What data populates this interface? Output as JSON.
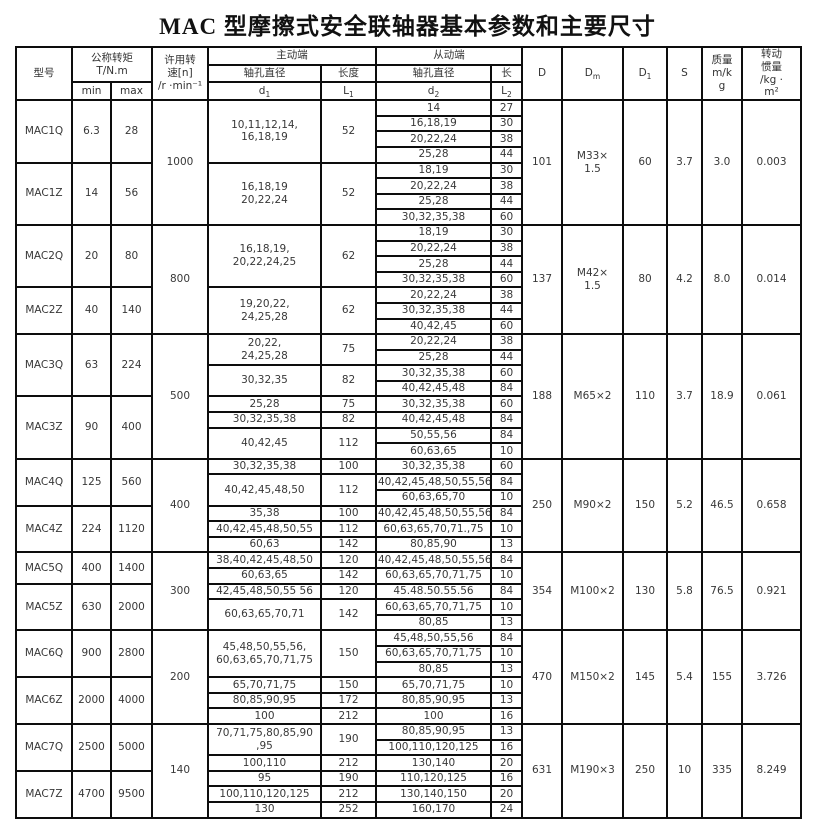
{
  "title": "MAC 型摩擦式安全联轴器基本参数和主要尺寸",
  "header": {
    "model": "型号",
    "torque_l1": "公称转矩",
    "torque_l2": "T/N.m",
    "min": "min",
    "max": "max",
    "speed_lines": [
      "许用转",
      "速[n]",
      "/r ·min⁻¹"
    ],
    "driver": "主动端",
    "driven": "从动端",
    "bore": "轴孔直径",
    "length": "长度",
    "length_short": "长",
    "d_base": "d",
    "L_base": "L",
    "sub1": "1",
    "sub2": "2",
    "D": "D",
    "Dm_base": "D",
    "Dm_sub": "m",
    "D1_base": "D",
    "D1_sub": "1",
    "S": "S",
    "mass_lines": [
      "质量",
      "m/k",
      "g"
    ],
    "inertia_lines": [
      "转动",
      "惯量",
      "/kg ·",
      "m²"
    ]
  },
  "groups": [
    {
      "speed": "1000",
      "D": "101",
      "Dm": [
        "M33×",
        "1.5"
      ],
      "D1": "60",
      "S": "3.7",
      "mass": "3.0",
      "inertia": "0.003",
      "models": [
        {
          "name": "MAC1Q",
          "min": "6.3",
          "max": "28",
          "blocks": [
            {
              "d1": [
                "10,11,12,14,",
                "16,18,19"
              ],
              "L1": "52",
              "rows": [
                [
                  "14",
                  "27"
                ],
                [
                  "16,18,19",
                  "30"
                ],
                [
                  "20,22,24",
                  "38"
                ],
                [
                  "25,28",
                  "44"
                ]
              ]
            }
          ]
        },
        {
          "name": "MAC1Z",
          "min": "14",
          "max": "56",
          "blocks": [
            {
              "d1": [
                "16,18,19",
                "20,22,24"
              ],
              "L1": "52",
              "rows": [
                [
                  "18,19",
                  "30"
                ],
                [
                  "20,22,24",
                  "38"
                ],
                [
                  "25,28",
                  "44"
                ],
                [
                  "30,32,35,38",
                  "60"
                ]
              ]
            }
          ]
        }
      ]
    },
    {
      "speed": "800",
      "D": "137",
      "Dm": [
        "M42×",
        "1.5"
      ],
      "D1": "80",
      "S": "4.2",
      "mass": "8.0",
      "inertia": "0.014",
      "models": [
        {
          "name": "MAC2Q",
          "min": "20",
          "max": "80",
          "blocks": [
            {
              "d1": [
                "16,18,19,",
                "20,22,24,25"
              ],
              "L1": "62",
              "rows": [
                [
                  "18,19",
                  "30"
                ],
                [
                  "20,22,24",
                  "38"
                ],
                [
                  "25,28",
                  "44"
                ],
                [
                  "30,32,35,38",
                  "60"
                ]
              ]
            }
          ]
        },
        {
          "name": "MAC2Z",
          "min": "40",
          "max": "140",
          "blocks": [
            {
              "d1": [
                "19,20,22,",
                "24,25,28"
              ],
              "L1": "62",
              "rows": [
                [
                  "20,22,24",
                  "38"
                ],
                [
                  "30,32,35,38",
                  "44"
                ],
                [
                  "40,42,45",
                  "60"
                ]
              ]
            }
          ]
        }
      ]
    },
    {
      "speed": "500",
      "D": "188",
      "Dm": "M65×2",
      "D1": "110",
      "S": "3.7",
      "mass": "18.9",
      "inertia": "0.061",
      "models": [
        {
          "name": "MAC3Q",
          "min": "63",
          "max": "224",
          "blocks": [
            {
              "d1": [
                "20,22,",
                "24,25,28"
              ],
              "L1": "75",
              "rows": [
                [
                  "20,22,24",
                  "38"
                ],
                [
                  "25,28",
                  "44"
                ]
              ]
            },
            {
              "d1": "30,32,35",
              "L1": "82",
              "rows": [
                [
                  "30,32,35,38",
                  "60"
                ],
                [
                  "40,42,45,48",
                  "84"
                ]
              ]
            }
          ]
        },
        {
          "name": "MAC3Z",
          "min": "90",
          "max": "400",
          "blocks": [
            {
              "d1": "25,28",
              "L1": "75",
              "rows": [
                [
                  "30,32,35,38",
                  "60"
                ]
              ]
            },
            {
              "d1": "30,32,35,38",
              "L1": "82",
              "rows": [
                [
                  "40,42,45,48",
                  "84"
                ]
              ]
            },
            {
              "d1": "40,42,45",
              "L1": "112",
              "rows": [
                [
                  "50,55,56",
                  "84"
                ],
                [
                  "60,63,65",
                  "10"
                ]
              ]
            }
          ]
        }
      ]
    },
    {
      "speed": "400",
      "D": "250",
      "Dm": "M90×2",
      "D1": "150",
      "S": "5.2",
      "mass": "46.5",
      "inertia": "0.658",
      "models": [
        {
          "name": "MAC4Q",
          "min": "125",
          "max": "560",
          "blocks": [
            {
              "d1": "30,32,35,38",
              "L1": "100",
              "rows": [
                [
                  "30,32,35,38",
                  "60"
                ]
              ]
            },
            {
              "d1": "40,42,45,48,50",
              "L1": "112",
              "rows": [
                [
                  "40,42,45,48,50,55,56",
                  "84"
                ],
                [
                  "60,63,65,70",
                  "10"
                ]
              ]
            }
          ]
        },
        {
          "name": "MAC4Z",
          "min": "224",
          "max": "1120",
          "blocks": [
            {
              "d1": "35,38",
              "L1": "100",
              "rows": [
                [
                  "40,42,45,48,50,55,56",
                  "84"
                ]
              ]
            },
            {
              "d1": "40,42,45,48,50,55",
              "L1": "112",
              "rows": [
                [
                  "60,63,65,70,71.,75",
                  "10"
                ]
              ]
            },
            {
              "d1": "60,63",
              "L1": "142",
              "rows": [
                [
                  "80,85,90",
                  "13"
                ]
              ]
            }
          ]
        }
      ]
    },
    {
      "speed": "300",
      "D": "354",
      "Dm": "M100×2",
      "D1": "130",
      "S": "5.8",
      "mass": "76.5",
      "inertia": "0.921",
      "models": [
        {
          "name": "MAC5Q",
          "min": "400",
          "max": "1400",
          "blocks": [
            {
              "d1": "38,40,42,45,48,50",
              "L1": "120",
              "rows": [
                [
                  "40,42,45,48,50,55,56",
                  "84"
                ]
              ]
            },
            {
              "d1": "60,63,65",
              "L1": "142",
              "rows": [
                [
                  "60,63,65,70,71,75",
                  "10"
                ]
              ]
            }
          ]
        },
        {
          "name": "MAC5Z",
          "min": "630",
          "max": "2000",
          "blocks": [
            {
              "d1": "42,45,48,50,55 56",
              "L1": "120",
              "rows": [
                [
                  "45.48.50.55.56",
                  "84"
                ]
              ]
            },
            {
              "d1": "60,63,65,70,71",
              "L1": "142",
              "rows": [
                [
                  "60,63,65,70,71,75",
                  "10"
                ],
                [
                  "80,85",
                  "13"
                ]
              ]
            }
          ]
        }
      ]
    },
    {
      "speed": "200",
      "D": "470",
      "Dm": "M150×2",
      "D1": "145",
      "S": "5.4",
      "mass": "155",
      "inertia": "3.726",
      "models": [
        {
          "name": "MAC6Q",
          "min": "900",
          "max": "2800",
          "blocks": [
            {
              "d1": [
                "45,48,50,55,56,",
                "60,63,65,70,71,75"
              ],
              "L1": "150",
              "rows": [
                [
                  "45,48,50,55,56",
                  "84"
                ],
                [
                  "60,63,65,70,71,75",
                  "10"
                ],
                [
                  "80,85",
                  "13"
                ]
              ]
            }
          ]
        },
        {
          "name": "MAC6Z",
          "min": "2000",
          "max": "4000",
          "blocks": [
            {
              "d1": "65,70,71,75",
              "L1": "150",
              "rows": [
                [
                  "65,70,71,75",
                  "10"
                ]
              ]
            },
            {
              "d1": "80,85,90,95",
              "L1": "172",
              "rows": [
                [
                  "80,85,90,95",
                  "13"
                ]
              ]
            },
            {
              "d1": "100",
              "L1": "212",
              "rows": [
                [
                  "100",
                  "16"
                ]
              ]
            }
          ]
        }
      ]
    },
    {
      "speed": "140",
      "D": "631",
      "Dm": "M190×3",
      "D1": "250",
      "S": "10",
      "mass": "335",
      "inertia": "8.249",
      "models": [
        {
          "name": "MAC7Q",
          "min": "2500",
          "max": "5000",
          "blocks": [
            {
              "d1": [
                "70,71,75,80,85,90",
                ",95"
              ],
              "L1": "190",
              "rows": [
                [
                  "80,85,90,95",
                  "13"
                ],
                [
                  "100,110,120,125",
                  "16"
                ]
              ]
            },
            {
              "d1": "100,110",
              "L1": "212",
              "rows": [
                [
                  "130,140",
                  "20"
                ]
              ]
            }
          ]
        },
        {
          "name": "MAC7Z",
          "min": "4700",
          "max": "9500",
          "blocks": [
            {
              "d1": "95",
              "L1": "190",
              "rows": [
                [
                  "110,120,125",
                  "16"
                ]
              ]
            },
            {
              "d1": "100,110,120,125",
              "L1": "212",
              "rows": [
                [
                  "130,140,150",
                  "20"
                ]
              ]
            },
            {
              "d1": "130",
              "L1": "252",
              "rows": [
                [
                  "160,170",
                  "24"
                ]
              ]
            }
          ]
        }
      ]
    }
  ]
}
